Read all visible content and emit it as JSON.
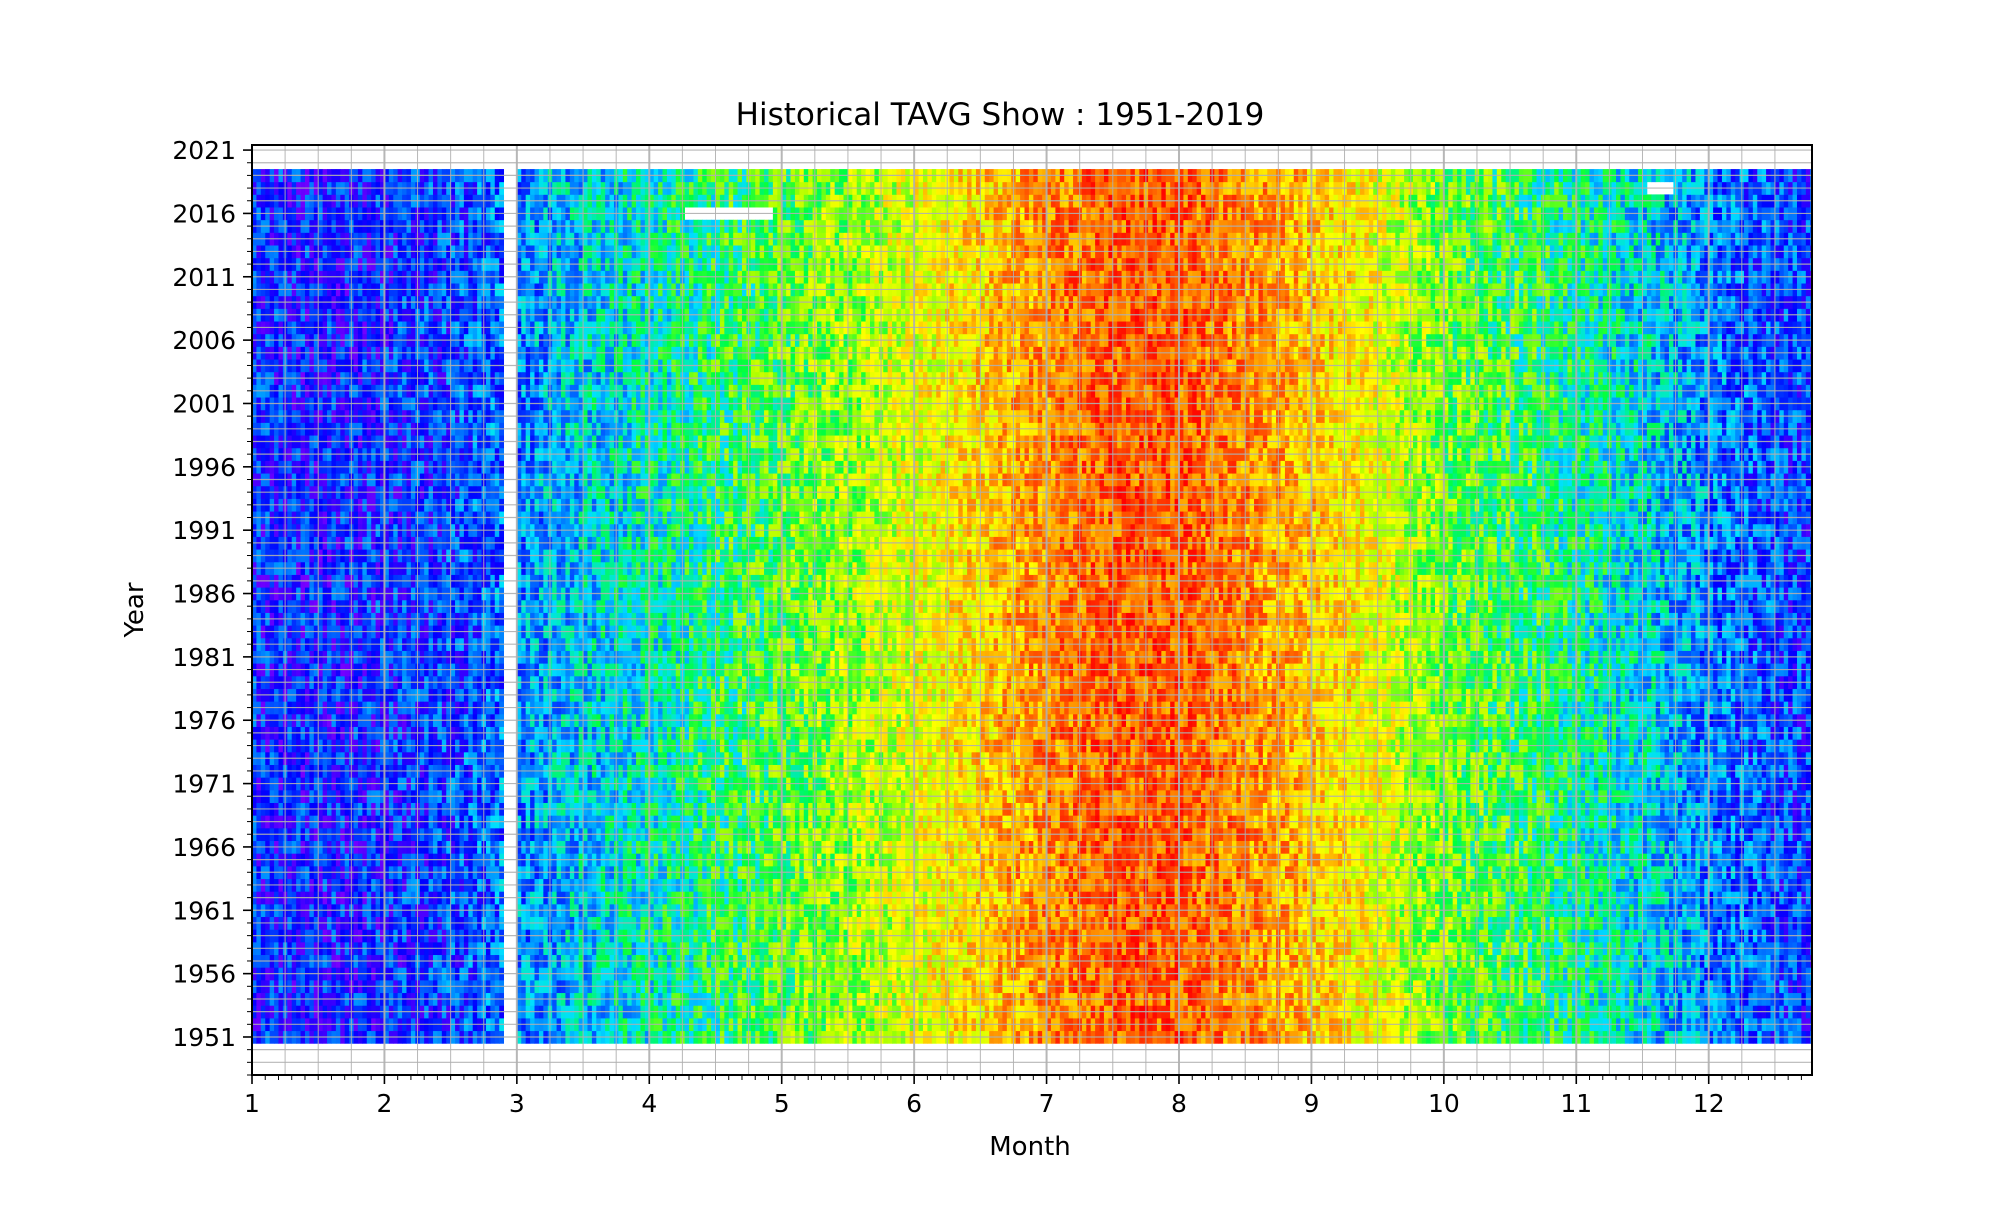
{
  "chart_data": {
    "type": "heatmap",
    "title": "Historical TAVG Show : 1951-2019",
    "xlabel": "Month",
    "ylabel": "Year",
    "xlim": [
      1,
      12.78
    ],
    "ylim": [
      1948,
      2021.4
    ],
    "x_ticks": [
      1,
      2,
      3,
      4,
      5,
      6,
      7,
      8,
      9,
      10,
      11,
      12
    ],
    "x_tick_labels": [
      "1",
      "2",
      "3",
      "4",
      "5",
      "6",
      "7",
      "8",
      "9",
      "10",
      "11",
      "12"
    ],
    "y_ticks": [
      1951,
      1956,
      1961,
      1966,
      1971,
      1976,
      1981,
      1986,
      1991,
      1996,
      2001,
      2006,
      2011,
      2016,
      2021
    ],
    "y_tick_labels": [
      "1951",
      "1956",
      "1961",
      "1966",
      "1971",
      "1976",
      "1981",
      "1986",
      "1991",
      "1996",
      "2001",
      "2006",
      "2011",
      "2016",
      "2021"
    ],
    "year_range": [
      1951,
      2019
    ],
    "month_range": [
      1,
      12.78
    ],
    "missing_cells": [
      {
        "year": 2016,
        "month_from": 4.25,
        "month_to": 4.92
      },
      {
        "year": 2018,
        "month_from": 11.52,
        "month_to": 11.72
      }
    ],
    "gap_month": 2.95,
    "colormap": [
      "#7a00ff",
      "#0000ff",
      "#0070ff",
      "#00e0ff",
      "#00ff40",
      "#aaff00",
      "#ffff00",
      "#ffaa00",
      "#ff5000",
      "#ff0000"
    ],
    "seasonal_profile": {
      "months": [
        1,
        1.5,
        2,
        2.5,
        3,
        3.5,
        4,
        4.5,
        5,
        5.5,
        6,
        6.5,
        7,
        7.5,
        8,
        8.5,
        9,
        9.5,
        10,
        10.5,
        11,
        11.5,
        12,
        12.5,
        12.78
      ],
      "level": [
        0.14,
        0.13,
        0.14,
        0.17,
        0.24,
        0.31,
        0.37,
        0.43,
        0.49,
        0.56,
        0.63,
        0.72,
        0.82,
        0.88,
        0.88,
        0.82,
        0.74,
        0.64,
        0.52,
        0.46,
        0.4,
        0.33,
        0.24,
        0.18,
        0.16
      ]
    },
    "grid": true
  }
}
